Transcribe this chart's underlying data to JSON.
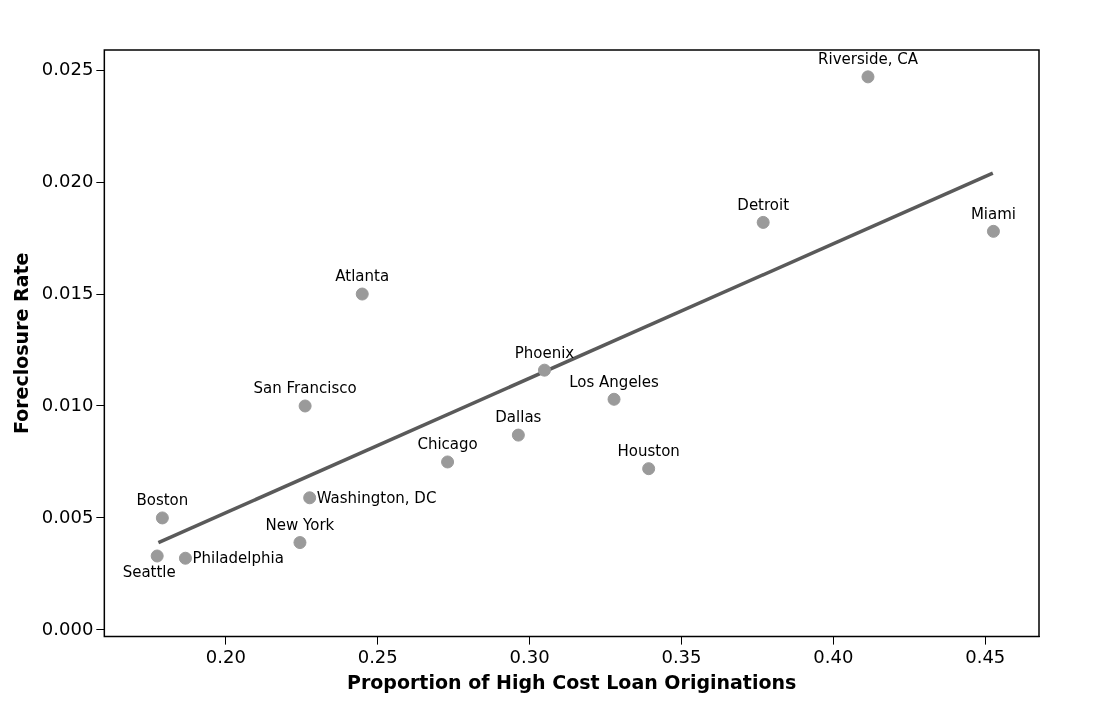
{
  "chart_data": {
    "type": "scatter",
    "xlabel": "Proportion of High Cost Loan Originations",
    "ylabel": "Foreclosure Rate",
    "xlim": [
      0.16,
      0.4677
    ],
    "xticks": [
      {
        "value": 0.2,
        "label": "0.20"
      },
      {
        "value": 0.25,
        "label": "0.25"
      },
      {
        "value": 0.3,
        "label": "0.30"
      },
      {
        "value": 0.35,
        "label": "0.35"
      },
      {
        "value": 0.4,
        "label": "0.40"
      },
      {
        "value": 0.45,
        "label": "0.45"
      }
    ],
    "ylim": [
      -0.0003,
      0.0259
    ],
    "yticks": [
      {
        "value": 0,
        "label": "0.000"
      },
      {
        "value": 0.005,
        "label": "0.005"
      },
      {
        "value": 0.01,
        "label": "0.010"
      },
      {
        "value": 0.015,
        "label": "0.015"
      },
      {
        "value": 0.02,
        "label": "0.020"
      },
      {
        "value": 0.025,
        "label": "0.025"
      }
    ],
    "grid": false,
    "legend": false,
    "series": [
      {
        "marker": "circle",
        "color": "#9a9a9a",
        "x": [
          0.2449,
          0.2261,
          0.273,
          0.1791,
          0.2276,
          0.2244,
          0.1774,
          0.1867,
          0.2963,
          0.3049,
          0.3278,
          0.3392,
          0.3769,
          0.4114,
          0.4527
        ],
        "values": [
          0.015,
          0.01,
          0.0075,
          0.005,
          0.0059,
          0.0039,
          0.0033,
          0.0032,
          0.0087,
          0.0116,
          0.0103,
          0.0072,
          0.0182,
          0.0247,
          0.0178
        ]
      },
      {
        "type": "line",
        "marker": "none",
        "color": "#5a5a5a",
        "x": [
          0.1778,
          0.4525
        ],
        "values": [
          0.0039,
          0.0204
        ]
      }
    ],
    "annotations": [
      {
        "text": "Atlanta",
        "x": 0.2449,
        "y": 0.015
      },
      {
        "text": "San Francisco",
        "x": 0.2261,
        "y": 0.01
      },
      {
        "text": "Chicago",
        "x": 0.273,
        "y": 0.0075
      },
      {
        "text": "Boston",
        "x": 0.1791,
        "y": 0.005
      },
      {
        "text": "Washington, DC",
        "x": 0.2276,
        "y": 0.0059
      },
      {
        "text": "New York",
        "x": 0.2244,
        "y": 0.0039
      },
      {
        "text": "Seattle",
        "x": 0.1774,
        "y": 0.0033
      },
      {
        "text": "Philadelphia",
        "x": 0.1867,
        "y": 0.0032
      },
      {
        "text": "Dallas",
        "x": 0.2963,
        "y": 0.0087
      },
      {
        "text": "Phoenix",
        "x": 0.3049,
        "y": 0.0116
      },
      {
        "text": "Los Angeles",
        "x": 0.3278,
        "y": 0.0103
      },
      {
        "text": "Houston",
        "x": 0.3392,
        "y": 0.0072
      },
      {
        "text": "Detroit",
        "x": 0.3769,
        "y": 0.0182
      },
      {
        "text": "Riverside, CA",
        "x": 0.4114,
        "y": 0.0247
      },
      {
        "text": "Miami",
        "x": 0.4527,
        "y": 0.0178
      }
    ]
  }
}
